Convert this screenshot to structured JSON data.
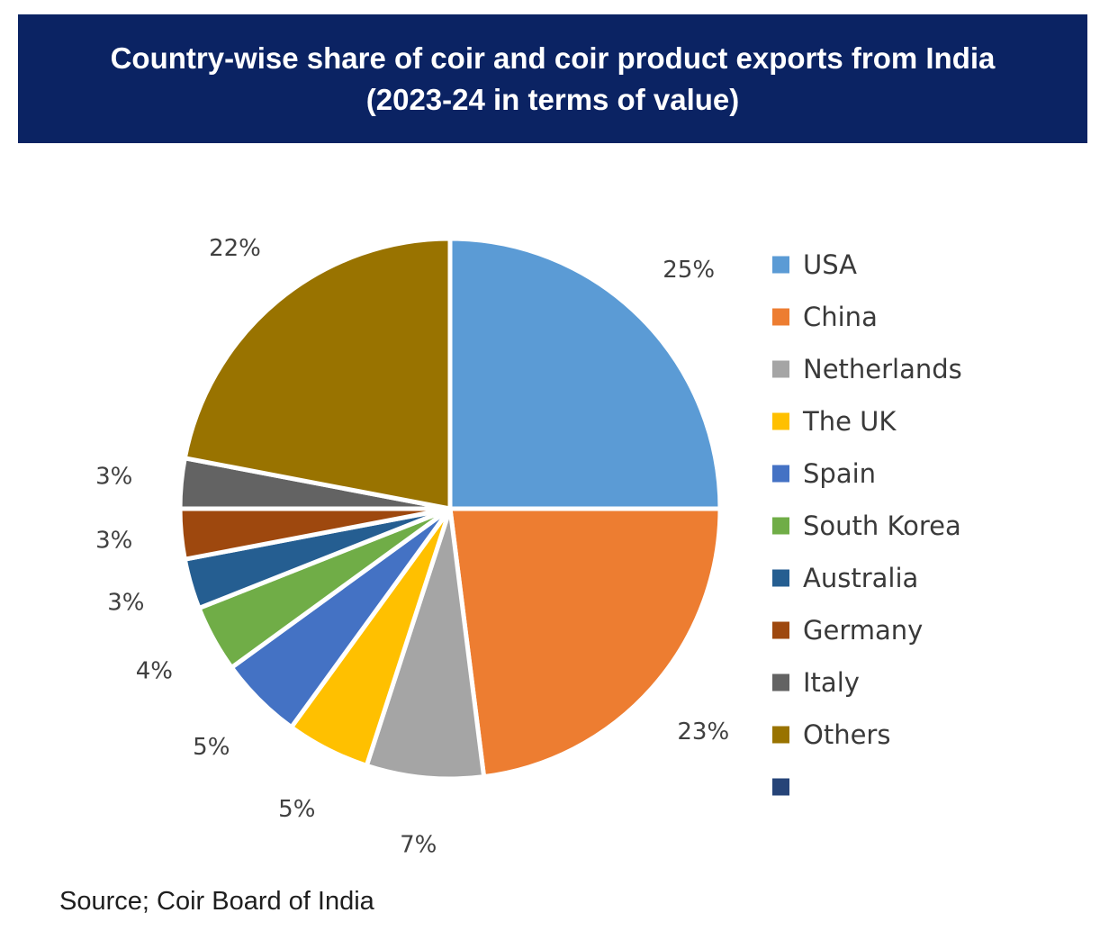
{
  "header": {
    "title_line1": "Country-wise share of coir and coir product exports from India",
    "title_line2": "(2023-24 in terms of value)"
  },
  "footer": {
    "source": "Source; Coir Board of India"
  },
  "chart_data": {
    "type": "pie",
    "title": "Country-wise share of coir and coir product exports from India (2023-24 in terms of value)",
    "legend_position": "right",
    "categories": [
      "USA",
      "China",
      "Netherlands",
      "The UK",
      "Spain",
      "South Korea",
      "Australia",
      "Germany",
      "Italy",
      "Others"
    ],
    "values": [
      25,
      23,
      7,
      5,
      5,
      4,
      3,
      3,
      3,
      22
    ],
    "labels": [
      "25%",
      "23%",
      "7%",
      "5%",
      "5%",
      "4%",
      "3%",
      "3%",
      "3%",
      "22%"
    ],
    "colors": [
      "#5b9bd5",
      "#ed7d31",
      "#a5a5a5",
      "#ffc000",
      "#4472c4",
      "#70ad47",
      "#255e91",
      "#9e480e",
      "#636363",
      "#997300"
    ],
    "legend_entries": [
      {
        "label": "USA",
        "color": "#5b9bd5"
      },
      {
        "label": "China",
        "color": "#ed7d31"
      },
      {
        "label": "Netherlands",
        "color": "#a5a5a5"
      },
      {
        "label": "The UK",
        "color": "#ffc000"
      },
      {
        "label": "Spain",
        "color": "#4472c4"
      },
      {
        "label": "South Korea",
        "color": "#70ad47"
      },
      {
        "label": "Australia",
        "color": "#255e91"
      },
      {
        "label": "Germany",
        "color": "#9e480e"
      },
      {
        "label": "Italy",
        "color": "#636363"
      },
      {
        "label": "Others",
        "color": "#997300"
      },
      {
        "label": "",
        "color": "#264478"
      }
    ]
  }
}
